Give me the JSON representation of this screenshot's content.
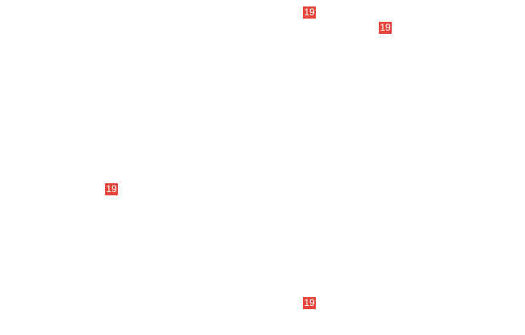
{
  "badge_color": "#e8453c",
  "badges": [
    {
      "label": "19"
    },
    {
      "label": "19"
    },
    {
      "label": "19"
    },
    {
      "label": "19"
    }
  ]
}
